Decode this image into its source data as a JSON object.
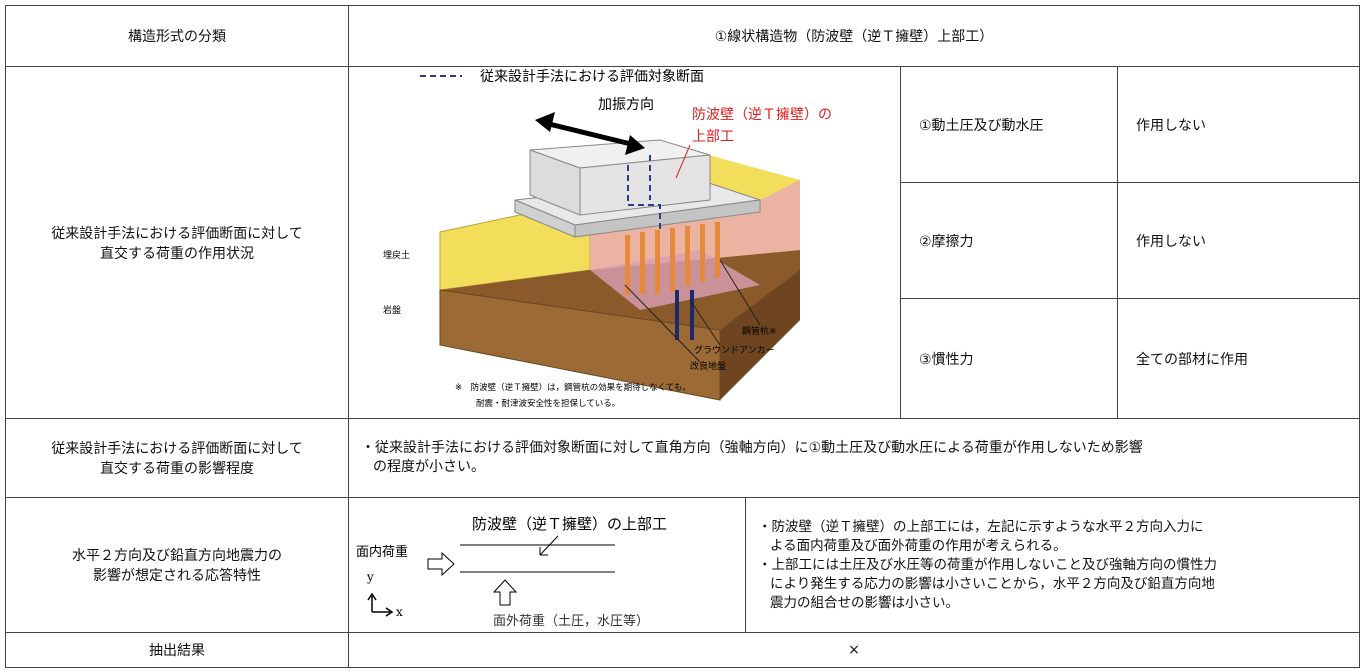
{
  "table": {
    "header": {
      "label": "構造形式の分類",
      "value": "①線状構造物（防波壁（逆Ｔ擁壁）上部工）"
    },
    "rows": [
      {
        "label": [
          "従来設計手法における評価断面に対して",
          "直交する荷重の作用状況"
        ],
        "figure": {
          "legend": "従来設計手法における評価対象断面",
          "direction": "加振方向",
          "target": [
            "防波壁（逆Ｔ擁壁）の",
            "上部工"
          ],
          "backfill": "埋戻土",
          "rock": "岩盤",
          "pile": "鋼管杭※",
          "anchor": "グラウンドアンカー",
          "improved": "改良地盤",
          "note": [
            "※　防波壁（逆Ｔ擁壁）は，鋼管杭の効果を期待しなくても，",
            "耐震・耐津波安全性を担保している。"
          ]
        },
        "items": [
          {
            "name": "①動土圧及び動水圧",
            "effect": "作用しない"
          },
          {
            "name": "②摩擦力",
            "effect": "作用しない"
          },
          {
            "name": "③慣性力",
            "effect": "全ての部材に作用"
          }
        ]
      },
      {
        "label": [
          "従来設計手法における評価断面に対して",
          "直交する荷重の影響程度"
        ],
        "text": [
          "・従来設計手法における評価対象断面に対して直角方向（強軸方向）に①動土圧及び動水圧による荷重が作用しないため影響",
          "の程度が小さい。"
        ]
      },
      {
        "label": [
          "水平２方向及び鉛直方向地震力の",
          "影響が想定される応答特性"
        ],
        "figure": {
          "title": "防波壁（逆Ｔ擁壁）の上部工",
          "in_plane": "面内荷重",
          "y": "y",
          "x": "x",
          "out_plane": "面外荷重（土圧，水圧等）"
        },
        "text": [
          "・防波壁（逆Ｔ擁壁）の上部工には，左記に示すような水平２方向入力に",
          "よる面内荷重及び面外荷重の作用が考えられる。",
          "・上部工には土圧及び水圧等の荷重が作用しないこと及び強軸方向の慣性力",
          "により発生する応力の影響は小さいことから，水平２方向及び鉛直方向地",
          "震力の組合せの影響は小さい。"
        ]
      },
      {
        "label": [
          "抽出結果"
        ],
        "value": "×"
      }
    ]
  }
}
